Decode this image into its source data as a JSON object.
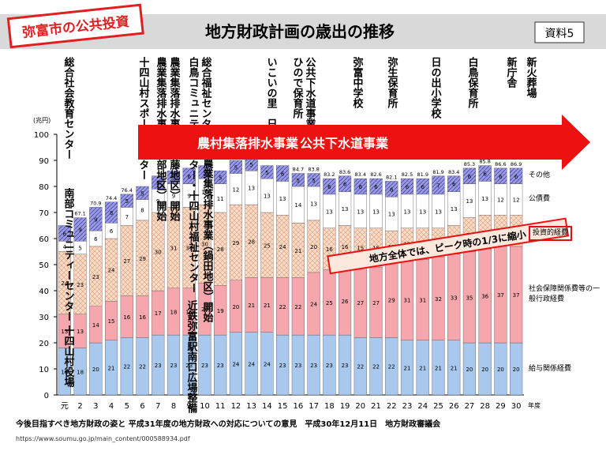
{
  "header": {
    "stamp": "弥富市の公共投資",
    "title": "地方財政計画の歳出の推移",
    "badge": "資料5"
  },
  "chart_data": {
    "type": "bar",
    "stacked": true,
    "y_label": "(兆円)",
    "x_label": "年度",
    "categories": [
      "元",
      "2",
      "3",
      "4",
      "5",
      "6",
      "7",
      "8",
      "9",
      "10",
      "11",
      "12",
      "13",
      "14",
      "15",
      "16",
      "17",
      "18",
      "19",
      "20",
      "21",
      "22",
      "23",
      "24",
      "25",
      "26",
      "27",
      "28",
      "29",
      "30"
    ],
    "series": [
      {
        "name": "給与関係経費",
        "color": "#a8c8ee",
        "values": [
          18,
          18,
          20,
          21,
          22,
          22,
          23,
          23,
          23,
          23,
          23,
          24,
          24,
          24,
          23,
          23,
          23,
          23,
          23,
          22,
          22,
          22,
          21,
          21,
          21,
          21,
          20,
          20,
          20,
          20
        ]
      },
      {
        "name": "社会保障関係費等の一般行政経費",
        "color": "#f6a6ad",
        "values": [
          13,
          13,
          14,
          15,
          16,
          16,
          17,
          18,
          18,
          20,
          19,
          20,
          21,
          21,
          22,
          22,
          24,
          25,
          26,
          27,
          27,
          29,
          31,
          31,
          32,
          33,
          35,
          36,
          37,
          37
        ]
      },
      {
        "name": "投資的経費",
        "color": "#fbdcc6",
        "hatch": "cross",
        "values": [
          24,
          23,
          23,
          24,
          27,
          29,
          30,
          31,
          31,
          30,
          28,
          29,
          28,
          25,
          24,
          21,
          20,
          16,
          16,
          15,
          15,
          12,
          12,
          12,
          11,
          11,
          13,
          13,
          12,
          12
        ]
      },
      {
        "name": "公債費",
        "color": "#ffffff",
        "values": [
          4,
          5,
          6,
          6,
          7,
          8,
          9,
          9,
          9,
          10,
          11,
          12,
          13,
          13,
          13,
          14,
          13,
          13,
          13,
          13,
          13,
          13,
          13,
          13,
          13,
          13,
          13,
          13,
          12,
          12
        ]
      },
      {
        "name": "その他",
        "color": "#9a9ae0",
        "hatch": "diagonal",
        "values": [
          6,
          9,
          9,
          8,
          5,
          5,
          5,
          5,
          6,
          5,
          5,
          5,
          5,
          5,
          6,
          5,
          5,
          6,
          6,
          6,
          6,
          6,
          6,
          6,
          7,
          6,
          6,
          6,
          6,
          6
        ]
      }
    ],
    "totals": [
      null,
      67.1,
      70.9,
      74.4,
      76.4,
      null,
      null,
      null,
      null,
      null,
      null,
      null,
      null,
      null,
      null,
      84.7,
      83.8,
      83.2,
      83.6,
      83.4,
      82.6,
      82.1,
      82.5,
      81.9,
      81.9,
      83.4,
      85.3,
      85.8,
      86.6,
      86.9
    ],
    "ylim": [
      0,
      100
    ],
    "yticks": [
      0,
      10,
      20,
      30,
      40,
      50,
      60,
      70,
      80,
      90,
      100
    ],
    "arrow_labels": [
      "農村集落排水事業",
      "公共下水道事業"
    ],
    "callout": "地方全体では、ピーク時の1/3に縮小",
    "annotations": [
      "総合社会教育センター",
      "十四山村スポーツセンター",
      "農業集落排水事業（西部地区）開始",
      "農業集落排水事業（大藤地区）開始",
      "総合福祉センター",
      "白鳥コミュニティセンター・十四山村福祉センター",
      "農業集落排水事業（鍋田地区）開始",
      "近鉄弥富駅南口広場整備",
      "いこいの里　日の出橋",
      "ひので保育所",
      "公共下水道事業開始",
      "弥富中学校",
      "弥生保育所",
      "日の出小学校",
      "白鳥保育所",
      "新庁舎",
      "新火葬場",
      "南部コミュニティーセンター",
      "十四山村役場"
    ]
  },
  "footer": {
    "source": "今後目指すべき地方財政の姿と 平成31年度の地方財政への対応についての意見　平成30年12月11日　地方財政審議会",
    "url": "https://www.soumu.go.jp/main_content/000588934.pdf"
  }
}
